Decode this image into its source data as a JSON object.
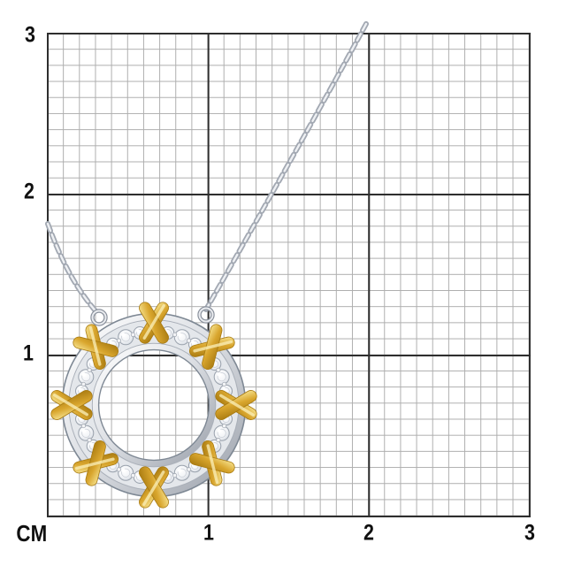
{
  "ruler": {
    "unit_label": "СМ",
    "y_ticks": [
      {
        "label": "3"
      },
      {
        "label": "2"
      },
      {
        "label": "1"
      }
    ],
    "x_ticks": [
      {
        "label": "1"
      },
      {
        "label": "2"
      },
      {
        "label": "3"
      }
    ],
    "grid": {
      "visible_cm": 3,
      "minor_cells_per_cm": 10
    }
  },
  "photo": {
    "subject": "two-tone circle pendant necklace with gold X motifs and diamond-set silver band on centimeter grid"
  },
  "colors": {
    "grid_minor": "#aeaeae",
    "grid_major": "#2e2e2e",
    "label": "#101010",
    "gold_light": "#f7e491",
    "gold_mid": "#d9a62e",
    "gold_dark": "#a87a10",
    "silver_light": "#f7f8fa",
    "silver_mid": "#d5d8dd",
    "silver_dark": "#9aa0aa",
    "silver_edge": "#7e8894",
    "diamond_outline": "#99a1ac"
  }
}
